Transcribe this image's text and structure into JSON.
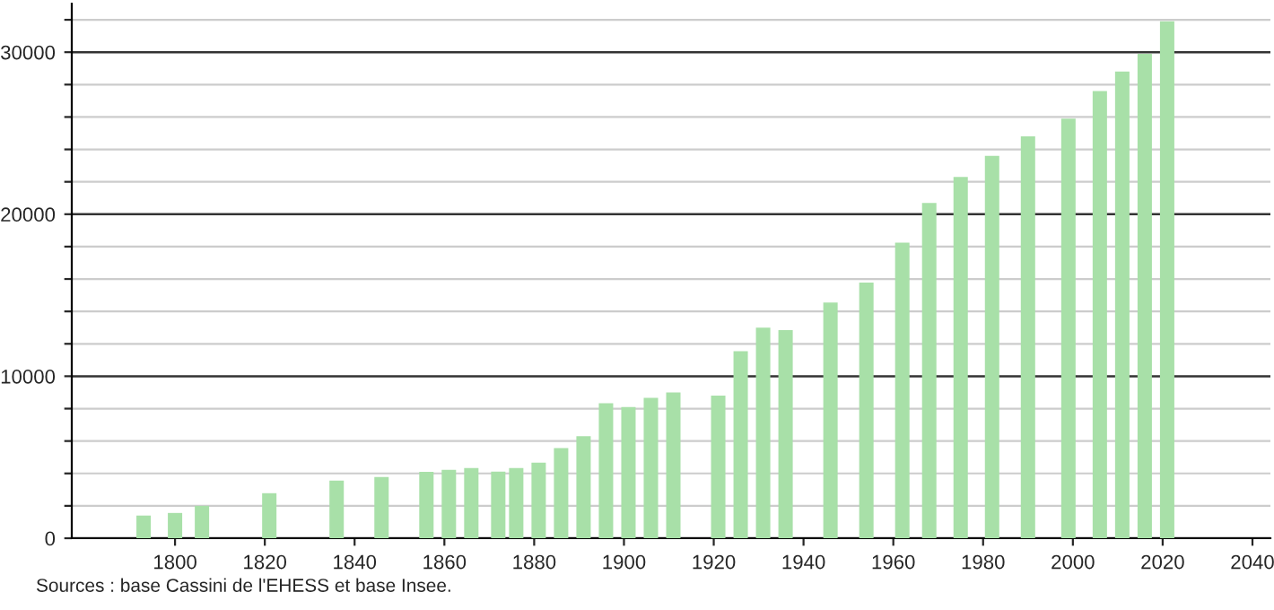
{
  "chart_data": {
    "type": "bar",
    "x": [
      1793,
      1800,
      1806,
      1821,
      1836,
      1846,
      1856,
      1861,
      1866,
      1872,
      1876,
      1881,
      1886,
      1891,
      1896,
      1901,
      1906,
      1911,
      1921,
      1926,
      1931,
      1936,
      1946,
      1954,
      1962,
      1968,
      1975,
      1982,
      1990,
      1999,
      2006,
      2011,
      2016,
      2021
    ],
    "values": [
      1400,
      1560,
      2000,
      2780,
      3560,
      3780,
      4100,
      4220,
      4330,
      4110,
      4330,
      4670,
      5560,
      6300,
      8330,
      8100,
      8670,
      9000,
      8800,
      11550,
      13000,
      12850,
      14550,
      15780,
      18250,
      20700,
      22300,
      23600,
      24800,
      25900,
      27600,
      28800,
      29900,
      31900
    ],
    "color": "#a8e0a8",
    "xlim": [
      1777,
      2044
    ],
    "xticks": [
      1800,
      1820,
      1840,
      1860,
      1880,
      1900,
      1920,
      1940,
      1960,
      1980,
      2000,
      2020,
      2040
    ],
    "ylim": [
      0,
      33000
    ],
    "yticks": [
      0,
      {
        "value": 2000,
        "label": null
      },
      {
        "value": 4000,
        "label": null
      },
      {
        "value": 6000,
        "label": null
      },
      {
        "value": 8000,
        "label": null
      },
      10000,
      {
        "value": 12000,
        "label": null
      },
      {
        "value": 14000,
        "label": null
      },
      {
        "value": 16000,
        "label": null
      },
      {
        "value": 18000,
        "label": null
      },
      20000,
      {
        "value": 22000,
        "label": null
      },
      {
        "value": 24000,
        "label": null
      },
      {
        "value": 26000,
        "label": null
      },
      {
        "value": 28000,
        "label": null
      },
      30000,
      {
        "value": 32000,
        "label": null
      }
    ],
    "grid": "y",
    "annotations": [
      "Sources : base Cassini de l'EHESS et base Insee."
    ]
  }
}
